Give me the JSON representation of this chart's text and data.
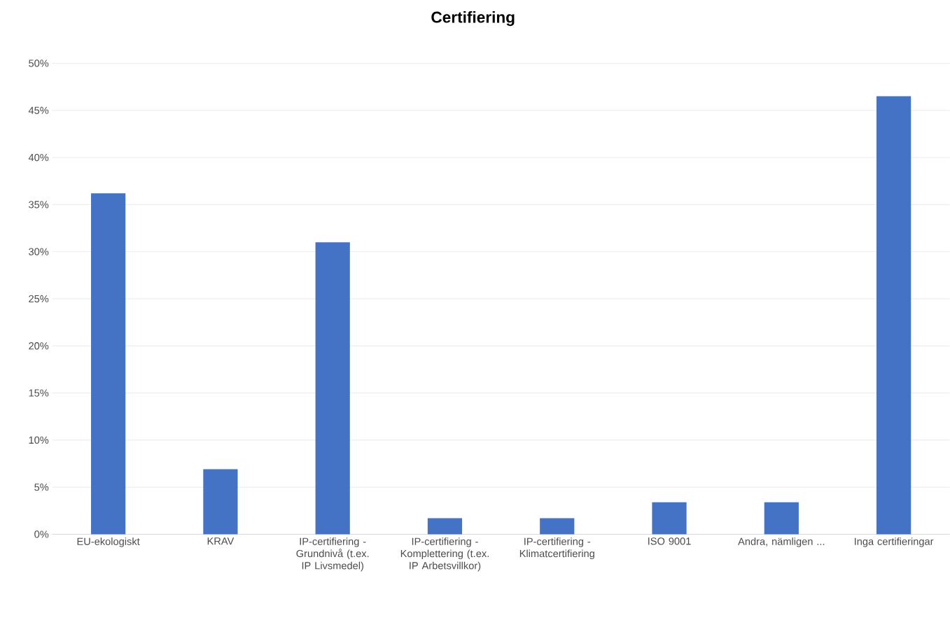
{
  "chart_data": {
    "type": "bar",
    "title": "Certifiering",
    "categories": [
      "EU-ekologiskt",
      "KRAV",
      "IP-certifiering - Grundnivå (t.ex. IP Livsmedel)",
      "IP-certifiering - Komplettering (t.ex. IP Arbetsvillkor)",
      "IP-certifiering - Klimatcertifiering",
      "ISO 9001",
      "Andra, nämligen ...",
      "Inga certifieringar"
    ],
    "values": [
      36.2,
      6.9,
      31.0,
      1.7,
      1.7,
      3.4,
      3.4,
      46.5
    ],
    "color": "#4472c4",
    "ylim": [
      0,
      50
    ],
    "yticks": [
      {
        "value": 0,
        "label": "0%"
      },
      {
        "value": 5,
        "label": "5%"
      },
      {
        "value": 10,
        "label": "10%"
      },
      {
        "value": 15,
        "label": "15%"
      },
      {
        "value": 20,
        "label": "20%"
      },
      {
        "value": 25,
        "label": "25%"
      },
      {
        "value": 30,
        "label": "30%"
      },
      {
        "value": 35,
        "label": "35%"
      },
      {
        "value": 40,
        "label": "40%"
      },
      {
        "value": 45,
        "label": "45%"
      },
      {
        "value": 50,
        "label": "50%"
      }
    ],
    "grid": "y"
  }
}
